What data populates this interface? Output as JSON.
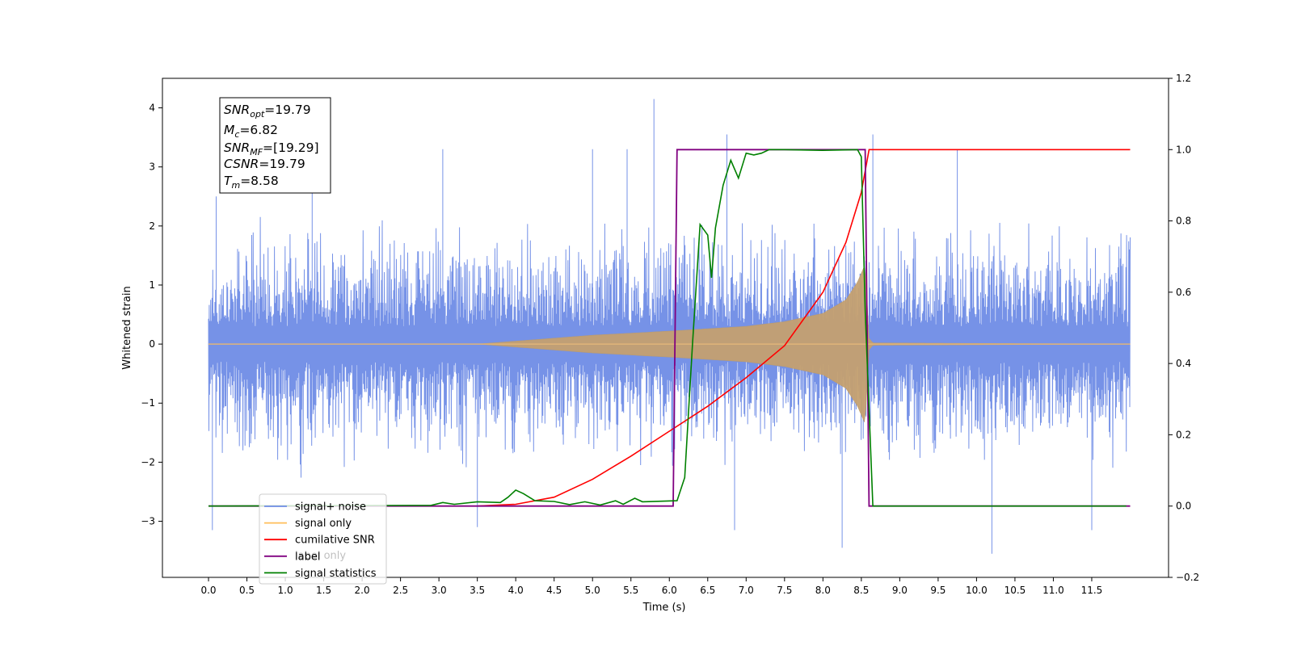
{
  "chart_data": {
    "type": "line",
    "xlabel": "Time (s)",
    "ylabel": "Whitened strain",
    "xlim": [
      -0.6,
      12.5
    ],
    "ylim": [
      -3.95,
      4.5
    ],
    "ylim_right": [
      -0.2,
      1.2
    ],
    "x_ticks": [
      "0.0",
      "0.5",
      "1.0",
      "1.5",
      "2.0",
      "2.5",
      "3.0",
      "3.5",
      "4.0",
      "4.5",
      "5.0",
      "5.5",
      "6.0",
      "6.5",
      "7.0",
      "7.5",
      "8.0",
      "8.5",
      "9.0",
      "9.5",
      "10.0",
      "10.5",
      "11.0",
      "11.5"
    ],
    "y_ticks_left": [
      "−3",
      "−2",
      "−1",
      "0",
      "1",
      "2",
      "3",
      "4"
    ],
    "y_ticks_right": [
      "−0.2",
      "0.0",
      "0.2",
      "0.4",
      "0.6",
      "0.8",
      "1.0",
      "1.2"
    ],
    "legend_position": "lower-left",
    "legend": [
      {
        "label": "signal+ noise",
        "color": "#6f8ce6"
      },
      {
        "label": "signal only",
        "color": "#ffbe5a"
      },
      {
        "label": "cumilative SNR",
        "color": "#ff0000"
      },
      {
        "label": "label",
        "color": "#800080"
      },
      {
        "label": "signal statistics",
        "color": "#008000"
      }
    ],
    "legend_hidden_label": "label only",
    "annotation_box": {
      "snr_opt": {
        "symbol": "SNR",
        "sub": "opt",
        "value": "=19.79"
      },
      "mc": {
        "symbol": "M",
        "sub": "c",
        "value": "=6.82"
      },
      "snr_mf": {
        "symbol": "SNR",
        "sub": "MF",
        "value": "=[19.29]"
      },
      "csnr": {
        "symbol": "CSNR",
        "sub": "",
        "value": "=19.79"
      },
      "tm": {
        "symbol": "T",
        "sub": "m",
        "value": "=8.58"
      }
    },
    "series": [
      {
        "name": "signal+ noise",
        "axis": "left",
        "color": "#6f8ce6",
        "x_range": [
          0.0,
          12.0
        ],
        "noise_envelope": [
          -2.3,
          2.3
        ],
        "extreme_spikes": [
          {
            "x": 0.05,
            "y": -3.15
          },
          {
            "x": 0.1,
            "y": 2.5
          },
          {
            "x": 1.35,
            "y": 2.65
          },
          {
            "x": 3.05,
            "y": 3.3
          },
          {
            "x": 3.5,
            "y": -3.1
          },
          {
            "x": 5.0,
            "y": 3.3
          },
          {
            "x": 5.45,
            "y": 3.3
          },
          {
            "x": 5.8,
            "y": 4.15
          },
          {
            "x": 6.75,
            "y": 3.55
          },
          {
            "x": 6.85,
            "y": -3.15
          },
          {
            "x": 8.25,
            "y": -3.45
          },
          {
            "x": 8.65,
            "y": 3.55
          },
          {
            "x": 9.75,
            "y": 3.3
          },
          {
            "x": 10.2,
            "y": -3.55
          },
          {
            "x": 11.5,
            "y": -3.15
          }
        ]
      },
      {
        "name": "signal only",
        "axis": "left",
        "color": "#ffbe5a",
        "x": [
          0.0,
          3.5,
          4.0,
          5.0,
          6.0,
          7.0,
          7.5,
          8.0,
          8.3,
          8.45,
          8.55,
          8.6,
          8.65,
          12.0
        ],
        "envelope": [
          0.0,
          0.0,
          0.05,
          0.15,
          0.22,
          0.3,
          0.38,
          0.52,
          0.75,
          1.05,
          1.35,
          0.1,
          0.02,
          0.0
        ]
      },
      {
        "name": "cumilative SNR",
        "axis": "right",
        "color": "#ff0000",
        "x": [
          3.5,
          4.0,
          4.5,
          5.0,
          5.5,
          6.0,
          6.5,
          7.0,
          7.5,
          8.0,
          8.3,
          8.5,
          8.6,
          12.0
        ],
        "y": [
          0.0,
          0.005,
          0.025,
          0.075,
          0.14,
          0.21,
          0.28,
          0.36,
          0.45,
          0.6,
          0.74,
          0.88,
          1.0,
          1.0
        ]
      },
      {
        "name": "label",
        "axis": "right",
        "color": "#800080",
        "x": [
          0.0,
          6.05,
          6.1,
          8.55,
          8.6,
          12.0
        ],
        "y": [
          0.0,
          0.0,
          1.0,
          1.0,
          0.0,
          0.0
        ]
      },
      {
        "name": "signal statistics",
        "axis": "right",
        "color": "#008000",
        "x": [
          0.0,
          2.9,
          3.05,
          3.2,
          3.5,
          3.8,
          3.9,
          4.0,
          4.1,
          4.25,
          4.5,
          4.7,
          4.9,
          5.1,
          5.3,
          5.4,
          5.55,
          5.65,
          6.1,
          6.2,
          6.3,
          6.4,
          6.5,
          6.55,
          6.6,
          6.7,
          6.8,
          6.9,
          7.0,
          7.1,
          7.2,
          7.3,
          7.5,
          8.0,
          8.45,
          8.5,
          8.55,
          8.65,
          11.95
        ],
        "y": [
          0.0,
          0.002,
          0.01,
          0.005,
          0.012,
          0.01,
          0.025,
          0.045,
          0.035,
          0.015,
          0.013,
          0.004,
          0.012,
          0.003,
          0.015,
          0.005,
          0.022,
          0.012,
          0.015,
          0.08,
          0.45,
          0.79,
          0.76,
          0.64,
          0.78,
          0.9,
          0.97,
          0.92,
          0.99,
          0.985,
          0.99,
          1.0,
          1.0,
          0.998,
          1.0,
          0.98,
          0.55,
          0.0,
          0.0
        ]
      }
    ]
  }
}
